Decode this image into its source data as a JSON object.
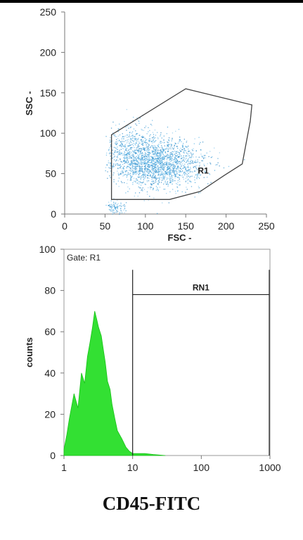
{
  "chart_data": [
    {
      "type": "scatter",
      "title": "",
      "xlabel": "FSC -",
      "ylabel": "SSC -",
      "xlim": [
        0,
        250
      ],
      "ylim": [
        0,
        250
      ],
      "xticks": [
        "0",
        "50",
        "100",
        "150",
        "200",
        "250"
      ],
      "yticks": [
        "0",
        "50",
        "100",
        "150",
        "200",
        "250"
      ],
      "grid": false,
      "color": "#3d9fd6",
      "gate": {
        "name": "R1",
        "label_at": [
          165,
          50
        ],
        "polygon": [
          [
            58,
            18
          ],
          [
            130,
            18
          ],
          [
            168,
            28
          ],
          [
            198,
            48
          ],
          [
            220,
            62
          ],
          [
            230,
            115
          ],
          [
            232,
            135
          ],
          [
            150,
            155
          ],
          [
            58,
            98
          ]
        ]
      },
      "clusters": [
        {
          "center": [
            120,
            62
          ],
          "spread": [
            35,
            20
          ],
          "density": "high"
        },
        {
          "center": [
            85,
            75
          ],
          "spread": [
            25,
            22
          ],
          "density": "medium"
        },
        {
          "center": [
            62,
            8
          ],
          "spread": [
            8,
            6
          ],
          "density": "low"
        }
      ]
    },
    {
      "type": "area",
      "title": "",
      "gate_label": "Gate: R1",
      "xlabel": "CD45-FITC",
      "ylabel": "counts",
      "xscale": "log",
      "xlim": [
        1,
        1000
      ],
      "ylim": [
        0,
        100
      ],
      "xticks": [
        "1",
        "10",
        "100",
        "1000"
      ],
      "yticks": [
        "0",
        "20",
        "40",
        "60",
        "80",
        "100"
      ],
      "grid": false,
      "color": "#22dd22",
      "series": [
        {
          "x": [
            1,
            1.1,
            1.2,
            1.4,
            1.6,
            1.8,
            2.0,
            2.2,
            2.4,
            2.6,
            2.8,
            3.0,
            3.2,
            3.5,
            3.8,
            4.0,
            4.3,
            4.7,
            5.0,
            5.5,
            6.0,
            7.0,
            8.0,
            9.0,
            10,
            12,
            15,
            20,
            30
          ],
          "values": [
            3,
            10,
            18,
            30,
            23,
            40,
            35,
            48,
            55,
            62,
            70,
            66,
            62,
            58,
            50,
            45,
            36,
            32,
            25,
            18,
            12,
            8,
            4,
            2,
            1,
            1,
            1,
            0.5,
            0
          ]
        }
      ],
      "marker": {
        "name": "RN1",
        "range": [
          10,
          1000
        ],
        "level": 78
      }
    }
  ],
  "caption": "CD45-FITC"
}
